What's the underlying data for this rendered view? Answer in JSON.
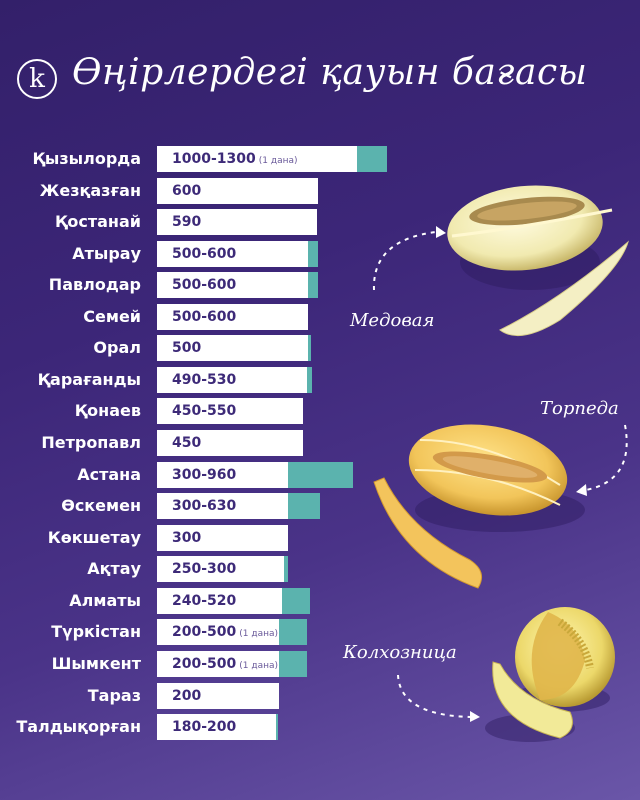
{
  "header": {
    "logo_letter": "k",
    "title": "Өңірлердегі қауын бағасы"
  },
  "colors": {
    "background_top": "#33206a",
    "background_bottom": "#6a56a8",
    "bar_base": "#ffffff",
    "bar_range": "#5bb3ae",
    "value_text": "#3d2a78"
  },
  "rows": [
    {
      "region": "Қызылорда",
      "value": "1000-1300",
      "note": "(1 дана)"
    },
    {
      "region": "Жезқазған",
      "value": "600",
      "note": ""
    },
    {
      "region": "Қостанай",
      "value": "590",
      "note": ""
    },
    {
      "region": "Атырау",
      "value": "500-600",
      "note": ""
    },
    {
      "region": "Павлодар",
      "value": "500-600",
      "note": ""
    },
    {
      "region": "Семей",
      "value": "500-600",
      "note": ""
    },
    {
      "region": "Орал",
      "value": "500",
      "note": ""
    },
    {
      "region": "Қарағанды",
      "value": "490-530",
      "note": ""
    },
    {
      "region": "Қонаев",
      "value": "450-550",
      "note": ""
    },
    {
      "region": "Петропавл",
      "value": "450",
      "note": ""
    },
    {
      "region": "Астана",
      "value": "300-960",
      "note": ""
    },
    {
      "region": "Өскемен",
      "value": "300-630",
      "note": ""
    },
    {
      "region": "Көкшетау",
      "value": "300",
      "note": ""
    },
    {
      "region": "Ақтау",
      "value": "250-300",
      "note": ""
    },
    {
      "region": "Алматы",
      "value": "240-520",
      "note": ""
    },
    {
      "region": "Түркістан",
      "value": "200-500",
      "note": "(1 дана)"
    },
    {
      "region": "Шымкент",
      "value": "200-500",
      "note": "(1 дана)"
    },
    {
      "region": "Тараз",
      "value": "200",
      "note": ""
    },
    {
      "region": "Талдықорған",
      "value": "180-200",
      "note": ""
    }
  ],
  "melons": [
    {
      "name": "Медовая",
      "icon": "honeydew-melon-icon"
    },
    {
      "name": "Торпеда",
      "icon": "torpedo-melon-icon"
    },
    {
      "name": "Колхозница",
      "icon": "kolkhoznitsa-melon-icon"
    }
  ],
  "chart_data": {
    "type": "bar",
    "orientation": "horizontal",
    "title": "Өңірлердегі қауын бағасы",
    "xlabel": "",
    "ylabel": "",
    "categories": [
      "Қызылорда",
      "Жезқазған",
      "Қостанай",
      "Атырау",
      "Павлодар",
      "Семей",
      "Орал",
      "Қарағанды",
      "Қонаев",
      "Петропавл",
      "Астана",
      "Өскемен",
      "Көкшетау",
      "Ақтау",
      "Алматы",
      "Түркістан",
      "Шымкент",
      "Тараз",
      "Талдықорған"
    ],
    "series": [
      {
        "name": "min_price",
        "values": [
          1000,
          600,
          590,
          500,
          500,
          500,
          500,
          490,
          450,
          450,
          300,
          300,
          300,
          250,
          240,
          200,
          200,
          200,
          180
        ]
      },
      {
        "name": "max_price",
        "values": [
          1300,
          600,
          590,
          600,
          600,
          600,
          500,
          530,
          550,
          450,
          960,
          630,
          300,
          300,
          520,
          500,
          500,
          200,
          200
        ]
      }
    ],
    "labels": [
      "1000-1300 (1 дана)",
      "600",
      "590",
      "500-600",
      "500-600",
      "500-600",
      "500",
      "490-530",
      "450-550",
      "450",
      "300-960",
      "300-630",
      "300",
      "250-300",
      "240-520",
      "200-500 (1 дана)",
      "200-500 (1 дана)",
      "200",
      "180-200"
    ],
    "annotations": [
      "Медовая",
      "Торпеда",
      "Колхозница"
    ],
    "grid": false,
    "legend": "none"
  },
  "bar_geometry": [
    {
      "white_end": 357,
      "teal_end": 387
    },
    {
      "white_end": 318,
      "teal_end": 318
    },
    {
      "white_end": 317,
      "teal_end": 317
    },
    {
      "white_end": 308,
      "teal_end": 318
    },
    {
      "white_end": 308,
      "teal_end": 318
    },
    {
      "white_end": 308,
      "teal_end": 308
    },
    {
      "white_end": 308,
      "teal_end": 311
    },
    {
      "white_end": 307,
      "teal_end": 312
    },
    {
      "white_end": 303,
      "teal_end": 303
    },
    {
      "white_end": 303,
      "teal_end": 303
    },
    {
      "white_end": 288,
      "teal_end": 353
    },
    {
      "white_end": 288,
      "teal_end": 320
    },
    {
      "white_end": 288,
      "teal_end": 288
    },
    {
      "white_end": 284,
      "teal_end": 288
    },
    {
      "white_end": 282,
      "teal_end": 310
    },
    {
      "white_end": 279,
      "teal_end": 307
    },
    {
      "white_end": 279,
      "teal_end": 307
    },
    {
      "white_end": 279,
      "teal_end": 279
    },
    {
      "white_end": 276,
      "teal_end": 278
    }
  ]
}
